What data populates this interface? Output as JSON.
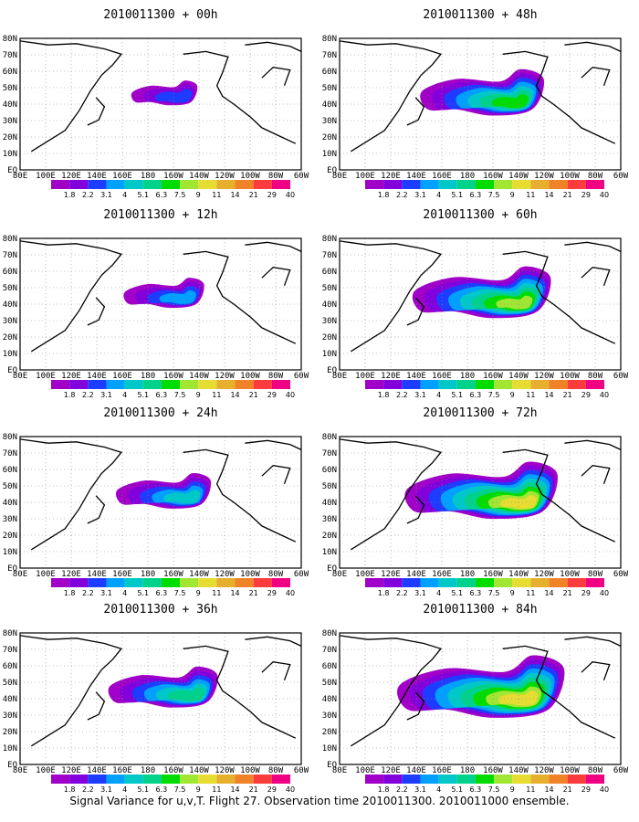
{
  "caption": "Signal Variance for u,v,T. Flight 27. Observation time 2010011300. 2010011000 ensemble.",
  "lat_labels": [
    "80N",
    "70N",
    "60N",
    "50N",
    "40N",
    "30N",
    "20N",
    "10N",
    "EQ"
  ],
  "lon_labels": [
    "80E",
    "100E",
    "120E",
    "140E",
    "160E",
    "180",
    "160W",
    "140W",
    "120W",
    "100W",
    "80W",
    "60W"
  ],
  "colorbar": {
    "labels": [
      "1.8",
      "2.2",
      "3.1",
      "4",
      "5.1",
      "6.3",
      "7.5",
      "9",
      "11",
      "14",
      "21",
      "29",
      "40"
    ],
    "colors": [
      "#a000c8",
      "#8200dc",
      "#1e3cff",
      "#00a0ff",
      "#00c8c8",
      "#00d28c",
      "#00dc00",
      "#a0e632",
      "#e6dc32",
      "#e6af2d",
      "#f08228",
      "#fa3c3c",
      "#f00082"
    ]
  },
  "panels": [
    {
      "title": "2010011300 + 00h",
      "level": 0
    },
    {
      "title": "2010011300 + 12h",
      "level": 1
    },
    {
      "title": "2010011300 + 24h",
      "level": 2
    },
    {
      "title": "2010011300 + 36h",
      "level": 3
    },
    {
      "title": "2010011300 + 48h",
      "level": 4
    },
    {
      "title": "2010011300 + 60h",
      "level": 5
    },
    {
      "title": "2010011300 + 72h",
      "level": 6
    },
    {
      "title": "2010011300 + 84h",
      "level": 7
    }
  ]
}
